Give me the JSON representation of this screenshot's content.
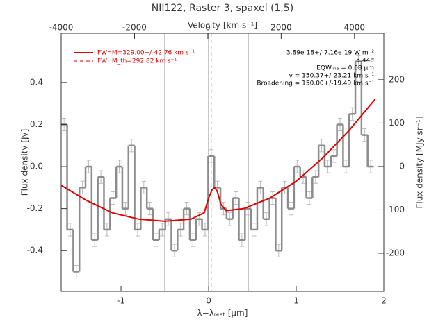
{
  "chart_data": {
    "type": "step",
    "title": "NII122, Raster 3, spaxel (1,5)",
    "xlabel": "λ−λᵣₑₛₜ [μm]",
    "x2label": "Velocity [km s⁻¹]",
    "ylabel": "Flux density [Jy]",
    "y2label": "Flux density [MJy sr⁻¹]",
    "xlim": [
      -1.683,
      2
    ],
    "xticks": [
      -1,
      0,
      1,
      2
    ],
    "x2lim": [
      -4000,
      4800
    ],
    "x2ticks": [
      -4000,
      -2000,
      0,
      2000,
      4000
    ],
    "ylim": [
      -0.594,
      0.634
    ],
    "yticks": [
      0.4,
      0.2,
      {
        "value": 0,
        "label": "0.0"
      },
      -0.2,
      -0.4
    ],
    "y2lim": [
      -288,
      307
    ],
    "y2ticks": [
      200,
      100,
      0,
      -100,
      -200
    ],
    "x": [
      -1.65,
      -1.58,
      -1.51,
      -1.44,
      -1.37,
      -1.3,
      -1.23,
      -1.16,
      -1.09,
      -1.02,
      -0.95,
      -0.88,
      -0.81,
      -0.74,
      -0.67,
      -0.6,
      -0.53,
      -0.46,
      -0.39,
      -0.32,
      -0.25,
      -0.18,
      -0.11,
      -0.04,
      0.03,
      0.1,
      0.17,
      0.24,
      0.31,
      0.38,
      0.45,
      0.52,
      0.59,
      0.66,
      0.73,
      0.8,
      0.87,
      0.94,
      1.01,
      1.08,
      1.15,
      1.22,
      1.29,
      1.36,
      1.43,
      1.5,
      1.57,
      1.64,
      1.71,
      1.78,
      1.85
    ],
    "series": [
      {
        "name": "spectrum",
        "color": "#8c8c8c",
        "values": [
          0.2,
          -0.3,
          -0.5,
          -0.1,
          0.0,
          -0.35,
          -0.05,
          -0.3,
          -0.15,
          0.0,
          -0.2,
          0.1,
          -0.3,
          -0.1,
          -0.2,
          -0.35,
          -0.3,
          -0.25,
          -0.4,
          -0.3,
          -0.2,
          -0.35,
          -0.25,
          -0.3,
          0.05,
          -0.1,
          -0.2,
          -0.25,
          -0.15,
          -0.35,
          -0.2,
          -0.3,
          -0.1,
          -0.25,
          -0.15,
          -0.4,
          -0.1,
          -0.2,
          0.0,
          -0.05,
          -0.15,
          -0.05,
          0.1,
          0.0,
          0.05,
          0.2,
          0.0,
          0.25,
          0.5,
          0.15,
          0.0
        ],
        "error": 0.03
      }
    ],
    "model": {
      "name": "FWHM=329.00+/-42.76 km s⁻¹",
      "color": "#e00000",
      "x": [
        -1.68,
        -1.4,
        -1.1,
        -0.8,
        -0.5,
        -0.2,
        -0.05,
        0.0,
        0.04,
        0.07,
        0.1,
        0.14,
        0.2,
        0.4,
        0.7,
        1.0,
        1.3,
        1.6,
        1.9
      ],
      "values": [
        -0.09,
        -0.16,
        -0.22,
        -0.25,
        -0.26,
        -0.25,
        -0.22,
        -0.15,
        -0.11,
        -0.1,
        -0.12,
        -0.18,
        -0.21,
        -0.2,
        -0.15,
        -0.07,
        0.04,
        0.17,
        0.32
      ]
    },
    "model_th_name": "FWHM_th=292.82 km s⁻¹",
    "vlines": [
      -0.5,
      0,
      0.452
    ],
    "dashed_vline": 0.03,
    "annotations": [
      "3.89e-18+/-7.16e-19 W m⁻²",
      "5.44σ",
      "EQWₗᵢₙₑ = 0.08 μm",
      "v = 150.37+/-23.21 km s⁻¹",
      "Broadening = 150.00+/-19.49 km s⁻¹"
    ]
  }
}
